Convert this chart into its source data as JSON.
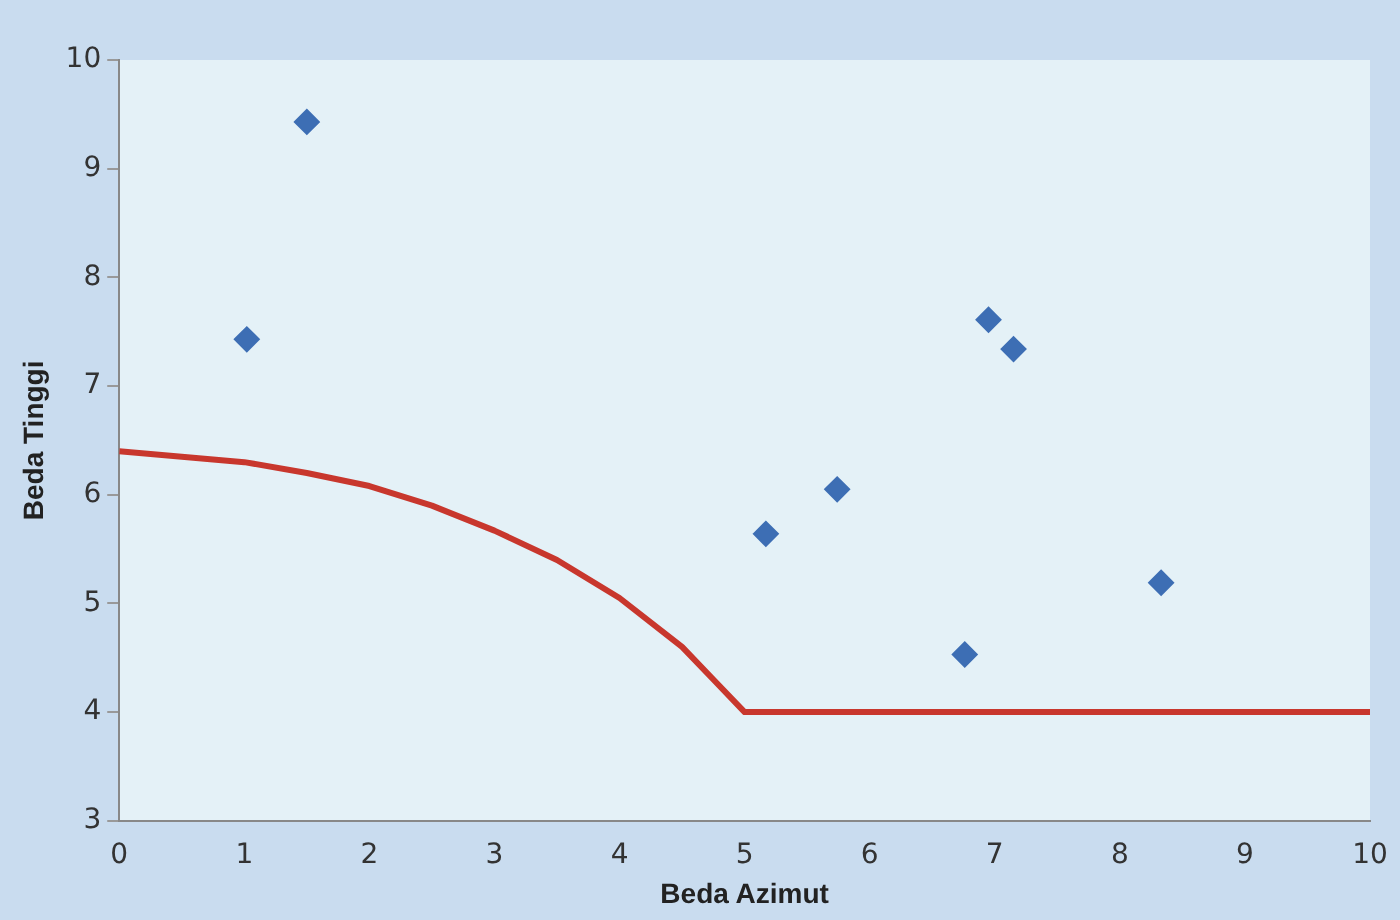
{
  "chart_data": {
    "type": "scatter",
    "xlabel": "Beda Azimut",
    "ylabel": "Beda Tinggi",
    "xlim": [
      0,
      10
    ],
    "ylim": [
      3,
      10
    ],
    "xticks": [
      0,
      1,
      2,
      3,
      4,
      5,
      6,
      7,
      8,
      9,
      10
    ],
    "yticks": [
      3,
      4,
      5,
      6,
      7,
      8,
      9,
      10
    ],
    "grid": false,
    "legend": false,
    "marker": "diamond",
    "series": [
      {
        "color": "#3d6eb4",
        "x": [
          1.02,
          1.5,
          5.17,
          5.74,
          6.95,
          7.15,
          6.76,
          8.33
        ],
        "values": [
          7.43,
          9.43,
          5.64,
          6.05,
          7.61,
          7.34,
          4.53,
          5.19
        ]
      },
      {
        "type": "line",
        "color": "#c8372d",
        "marker": "none",
        "x": [
          0,
          1,
          1.5,
          2,
          2.5,
          3,
          3.5,
          4,
          4.5,
          4.75,
          5,
          10
        ],
        "values": [
          6.4,
          6.3,
          6.2,
          6.08,
          5.9,
          5.67,
          5.4,
          5.05,
          4.6,
          4.3,
          4.0,
          4.0
        ]
      }
    ]
  }
}
